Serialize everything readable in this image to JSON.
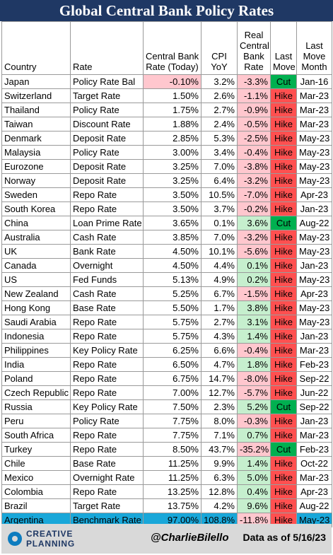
{
  "title": "Global Central Bank Policy Rates",
  "headers": {
    "country": "Country",
    "rate": "Rate",
    "central_bank_rate": [
      "Central Bank",
      "Rate (Today)"
    ],
    "cpi": [
      "CPI",
      "YoY"
    ],
    "real_rate": [
      "Real",
      "Central",
      "Bank",
      "Rate"
    ],
    "last_move": [
      "Last",
      "Move"
    ],
    "last_move_month": [
      "Last",
      "Move",
      "Month"
    ]
  },
  "rows": [
    {
      "country": "Japan",
      "rate": "Policy Rate Bal",
      "cb_rate": "-0.10%",
      "cpi": "3.2%",
      "real": "-3.3%",
      "move": "Cut",
      "month": "Jan-16"
    },
    {
      "country": "Switzerland",
      "rate": "Target Rate",
      "cb_rate": "1.50%",
      "cpi": "2.6%",
      "real": "-1.1%",
      "move": "Hike",
      "month": "Mar-23"
    },
    {
      "country": "Thailand",
      "rate": "Policy Rate",
      "cb_rate": "1.75%",
      "cpi": "2.7%",
      "real": "-0.9%",
      "move": "Hike",
      "month": "Mar-23"
    },
    {
      "country": "Taiwan",
      "rate": "Discount Rate",
      "cb_rate": "1.88%",
      "cpi": "2.4%",
      "real": "-0.5%",
      "move": "Hike",
      "month": "Mar-23"
    },
    {
      "country": "Denmark",
      "rate": "Deposit Rate",
      "cb_rate": "2.85%",
      "cpi": "5.3%",
      "real": "-2.5%",
      "move": "Hike",
      "month": "May-23"
    },
    {
      "country": "Malaysia",
      "rate": "Policy Rate",
      "cb_rate": "3.00%",
      "cpi": "3.4%",
      "real": "-0.4%",
      "move": "Hike",
      "month": "May-23"
    },
    {
      "country": "Eurozone",
      "rate": "Deposit Rate",
      "cb_rate": "3.25%",
      "cpi": "7.0%",
      "real": "-3.8%",
      "move": "Hike",
      "month": "May-23"
    },
    {
      "country": "Norway",
      "rate": "Deposit Rate",
      "cb_rate": "3.25%",
      "cpi": "6.4%",
      "real": "-3.2%",
      "move": "Hike",
      "month": "May-23"
    },
    {
      "country": "Sweden",
      "rate": "Repo Rate",
      "cb_rate": "3.50%",
      "cpi": "10.5%",
      "real": "-7.0%",
      "move": "Hike",
      "month": "Apr-23"
    },
    {
      "country": "South Korea",
      "rate": "Repo Rate",
      "cb_rate": "3.50%",
      "cpi": "3.7%",
      "real": "-0.2%",
      "move": "Hike",
      "month": "Jan-23"
    },
    {
      "country": "China",
      "rate": "Loan Prime Rate",
      "cb_rate": "3.65%",
      "cpi": "0.1%",
      "real": "3.6%",
      "move": "Cut",
      "month": "Aug-22"
    },
    {
      "country": "Australia",
      "rate": "Cash Rate",
      "cb_rate": "3.85%",
      "cpi": "7.0%",
      "real": "-3.2%",
      "move": "Hike",
      "month": "May-23"
    },
    {
      "country": "UK",
      "rate": "Bank Rate",
      "cb_rate": "4.50%",
      "cpi": "10.1%",
      "real": "-5.6%",
      "move": "Hike",
      "month": "May-23"
    },
    {
      "country": "Canada",
      "rate": "Overnight",
      "cb_rate": "4.50%",
      "cpi": "4.4%",
      "real": "0.1%",
      "move": "Hike",
      "month": "Jan-23"
    },
    {
      "country": "US",
      "rate": "Fed Funds",
      "cb_rate": "5.13%",
      "cpi": "4.9%",
      "real": "0.2%",
      "move": "Hike",
      "month": "May-23"
    },
    {
      "country": "New Zealand",
      "rate": "Cash Rate",
      "cb_rate": "5.25%",
      "cpi": "6.7%",
      "real": "-1.5%",
      "move": "Hike",
      "month": "Apr-23"
    },
    {
      "country": "Hong Kong",
      "rate": "Base Rate",
      "cb_rate": "5.50%",
      "cpi": "1.7%",
      "real": "3.8%",
      "move": "Hike",
      "month": "May-23"
    },
    {
      "country": "Saudi Arabia",
      "rate": "Repo Rate",
      "cb_rate": "5.75%",
      "cpi": "2.7%",
      "real": "3.1%",
      "move": "Hike",
      "month": "May-23"
    },
    {
      "country": "Indonesia",
      "rate": "Repo Rate",
      "cb_rate": "5.75%",
      "cpi": "4.3%",
      "real": "1.4%",
      "move": "Hike",
      "month": "Jan-23"
    },
    {
      "country": "Philippines",
      "rate": "Key Policy Rate",
      "cb_rate": "6.25%",
      "cpi": "6.6%",
      "real": "-0.4%",
      "move": "Hike",
      "month": "Mar-23"
    },
    {
      "country": "India",
      "rate": "Repo Rate",
      "cb_rate": "6.50%",
      "cpi": "4.7%",
      "real": "1.8%",
      "move": "Hike",
      "month": "Feb-23"
    },
    {
      "country": "Poland",
      "rate": "Repo Rate",
      "cb_rate": "6.75%",
      "cpi": "14.7%",
      "real": "-8.0%",
      "move": "Hike",
      "month": "Sep-22"
    },
    {
      "country": "Czech Republic",
      "rate": "Repo Rate",
      "cb_rate": "7.00%",
      "cpi": "12.7%",
      "real": "-5.7%",
      "move": "Hike",
      "month": "Jun-22"
    },
    {
      "country": "Russia",
      "rate": "Key Policy Rate",
      "cb_rate": "7.50%",
      "cpi": "2.3%",
      "real": "5.2%",
      "move": "Cut",
      "month": "Sep-22"
    },
    {
      "country": "Peru",
      "rate": "Policy Rate",
      "cb_rate": "7.75%",
      "cpi": "8.0%",
      "real": "-0.3%",
      "move": "Hike",
      "month": "Jan-23"
    },
    {
      "country": "South Africa",
      "rate": "Repo Rate",
      "cb_rate": "7.75%",
      "cpi": "7.1%",
      "real": "0.7%",
      "move": "Hike",
      "month": "Mar-23"
    },
    {
      "country": "Turkey",
      "rate": "Repo Rate",
      "cb_rate": "8.50%",
      "cpi": "43.7%",
      "real": "-35.2%",
      "move": "Cut",
      "month": "Feb-23"
    },
    {
      "country": "Chile",
      "rate": "Base Rate",
      "cb_rate": "11.25%",
      "cpi": "9.9%",
      "real": "1.4%",
      "move": "Hike",
      "month": "Oct-22"
    },
    {
      "country": "Mexico",
      "rate": "Overnight Rate",
      "cb_rate": "11.25%",
      "cpi": "6.3%",
      "real": "5.0%",
      "move": "Hike",
      "month": "Mar-23"
    },
    {
      "country": "Colombia",
      "rate": "Repo Rate",
      "cb_rate": "13.25%",
      "cpi": "12.8%",
      "real": "0.4%",
      "move": "Hike",
      "month": "Apr-23"
    },
    {
      "country": "Brazil",
      "rate": "Target Rate",
      "cb_rate": "13.75%",
      "cpi": "4.2%",
      "real": "9.6%",
      "move": "Hike",
      "month": "Aug-22"
    },
    {
      "country": "Argentina",
      "rate": "Benchmark Rate",
      "cb_rate": "97.00%",
      "cpi": "108.8%",
      "real": "-11.8%",
      "move": "Hike",
      "month": "May-23"
    }
  ],
  "highlight_country": "Argentina",
  "colors": {
    "title_bg": "#1f3864",
    "negative_real": "#ffc7ce",
    "positive_real": "#c6efce",
    "cut": "#00b050",
    "hike": "#ff5050",
    "highlight_row": "#19a7d9",
    "footer_bg": "#d9d9d9"
  },
  "footer": {
    "logo_text": "CREATIVE PLANNING",
    "logo_icon": "creative-planning-logo-icon",
    "handle": "@CharlieBilello",
    "as_of": "Data as of 5/16/23"
  }
}
